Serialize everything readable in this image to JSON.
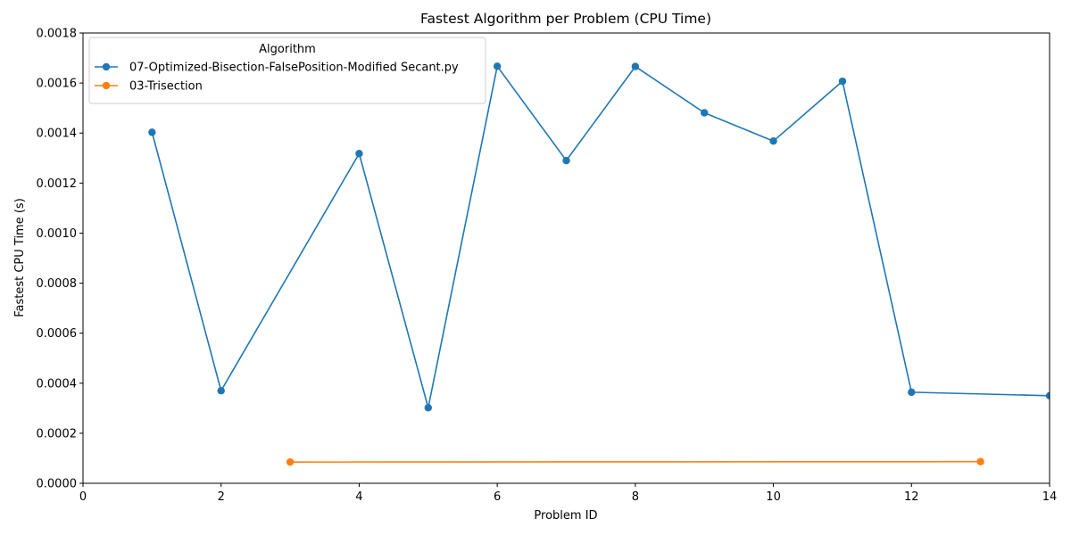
{
  "chart_data": {
    "type": "line",
    "title": "Fastest Algorithm per Problem (CPU Time)",
    "xlabel": "Problem ID",
    "ylabel": "Fastest CPU Time (s)",
    "xlim": [
      0,
      14
    ],
    "ylim": [
      0,
      0.0018
    ],
    "x_ticks": [
      0,
      2,
      4,
      6,
      8,
      10,
      12,
      14
    ],
    "y_ticks": [
      0,
      0.0002,
      0.0004,
      0.0006,
      0.0008,
      0.001,
      0.0012,
      0.0014,
      0.0016,
      0.0018
    ],
    "x_tick_labels": [
      "0",
      "2",
      "4",
      "6",
      "8",
      "10",
      "12",
      "14"
    ],
    "y_tick_labels": [
      "0.0000",
      "0.0002",
      "0.0004",
      "0.0006",
      "0.0008",
      "0.0010",
      "0.0012",
      "0.0014",
      "0.0016",
      "0.0018"
    ],
    "grid": false,
    "legend": {
      "title": "Algorithm",
      "placement": "top-left"
    },
    "series": [
      {
        "name": "07-Optimized-Bisection-FalsePosition-Modified Secant.py",
        "color": "#1f77b4",
        "marker": "circle",
        "x": [
          1,
          2,
          4,
          5,
          6,
          7,
          8,
          9,
          10,
          11,
          12,
          14
        ],
        "y": [
          0.001403,
          0.00037,
          0.001318,
          0.000302,
          0.001667,
          0.00129,
          0.001666,
          0.001481,
          0.001368,
          0.001607,
          0.000364,
          0.00035
        ]
      },
      {
        "name": "03-Trisection",
        "color": "#ff7f0e",
        "marker": "circle",
        "x": [
          3,
          13
        ],
        "y": [
          8.5e-05,
          8.65e-05
        ]
      }
    ]
  }
}
